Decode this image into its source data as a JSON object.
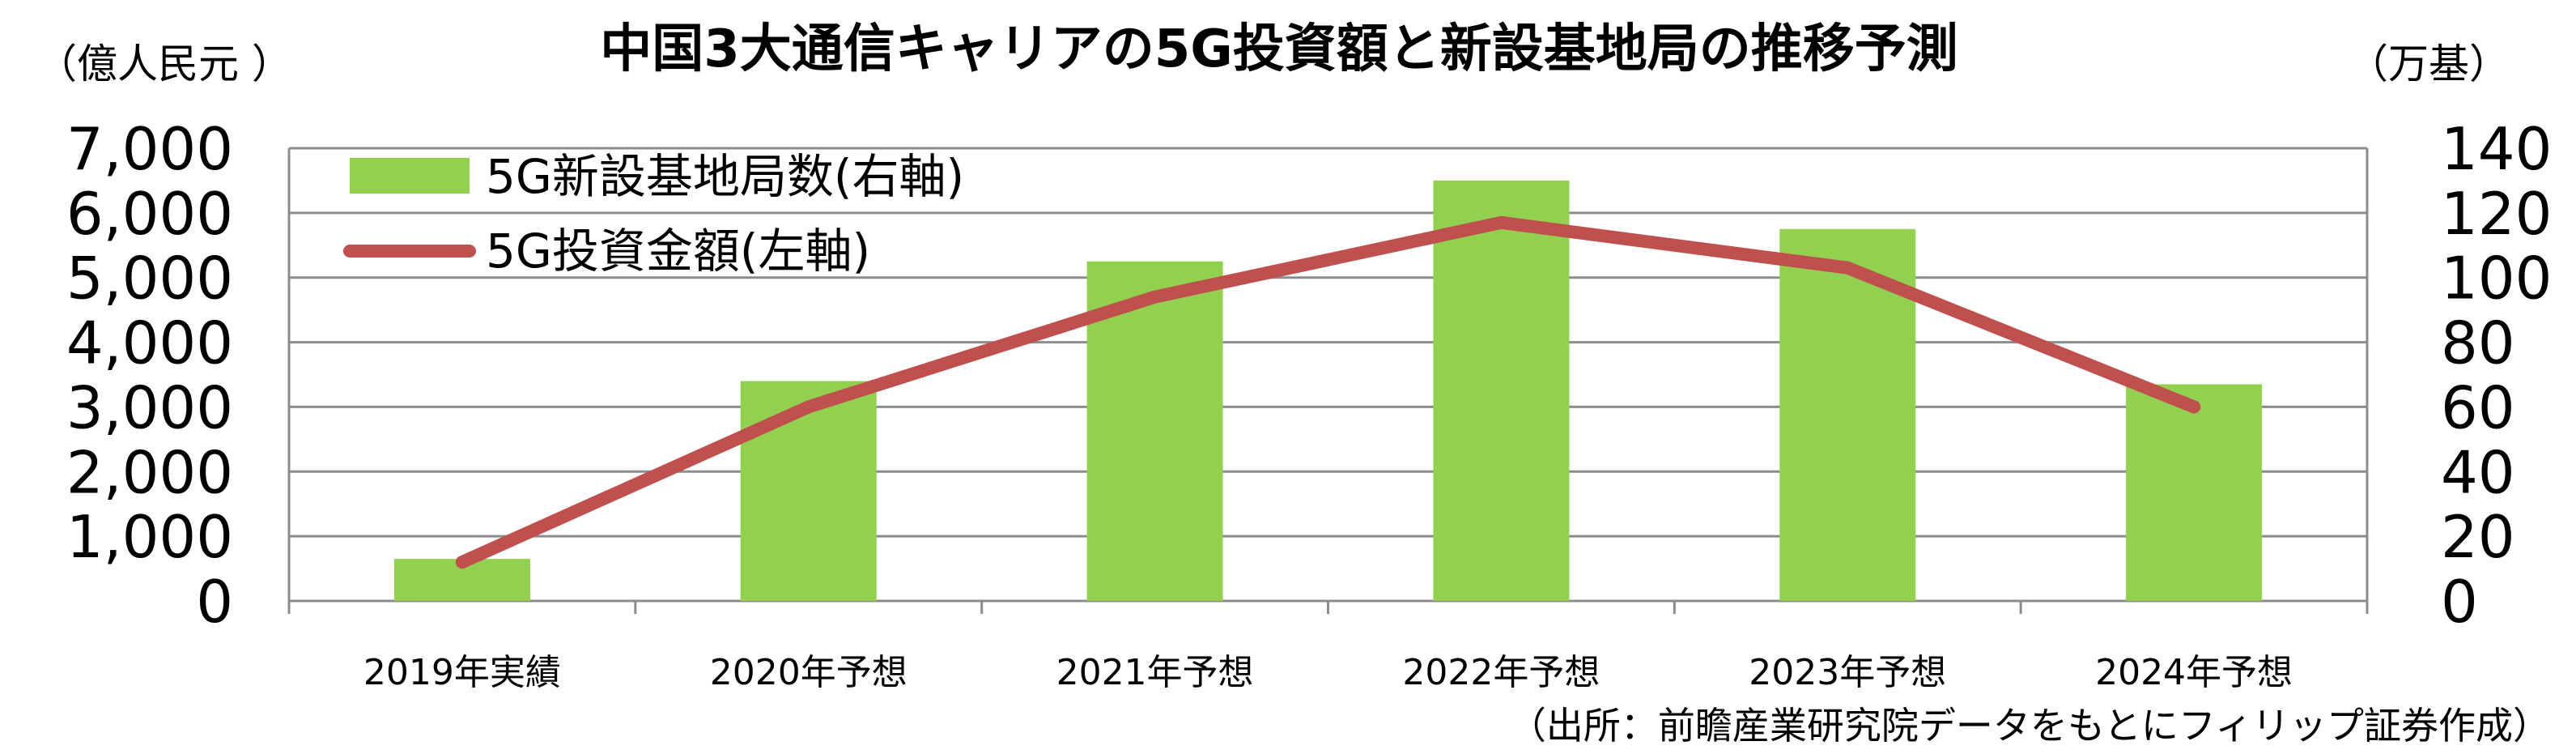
{
  "chart_data": {
    "type": "bar+line",
    "title": "中国3大通信キャリアの5G投資額と新設基地局の推移予測",
    "left_unit": "（億人民元 ）",
    "right_unit": "（万基）",
    "categories": [
      "2019年実績",
      "2020年予想",
      "2021年予想",
      "2022年予想",
      "2023年予想",
      "2024年予想"
    ],
    "left_axis": {
      "min": 0,
      "max": 7000,
      "ticks": [
        "0",
        "1,000",
        "2,000",
        "3,000",
        "4,000",
        "5,000",
        "6,000",
        "7,000"
      ]
    },
    "right_axis": {
      "min": 0,
      "max": 140,
      "ticks": [
        "0",
        "20",
        "40",
        "60",
        "80",
        "100",
        "120",
        "140"
      ]
    },
    "series": [
      {
        "name": "5G新設基地局数(右軸)",
        "type": "bar",
        "axis": "right",
        "color": "#92D050",
        "values": [
          13,
          68,
          105,
          130,
          115,
          67
        ]
      },
      {
        "name": "5G投資金額(左軸)",
        "type": "line",
        "axis": "left",
        "color": "#C0504D",
        "values": [
          600,
          3000,
          4700,
          5850,
          5150,
          3000
        ]
      }
    ],
    "grid": true,
    "legend_position": "top-left",
    "source": "（出所：前瞻産業研究院データをもとにフィリップ証券作成）"
  }
}
